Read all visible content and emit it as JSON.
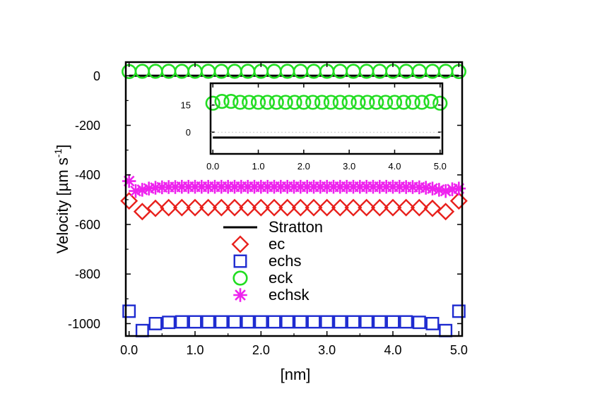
{
  "chart_data": {
    "type": "scatter",
    "xlabel": "[nm]",
    "ylabel": "Velocity [µm s",
    "ylabel_sup": "-1",
    "ylabel_close": "]",
    "xlim": [
      -0.05,
      5.05
    ],
    "ylim": [
      -1050,
      55
    ],
    "xticks": [
      0.0,
      1.0,
      2.0,
      3.0,
      4.0,
      5.0
    ],
    "xtick_labels": [
      "0.0",
      "1.0",
      "2.0",
      "3.0",
      "4.0",
      "5.0"
    ],
    "yticks": [
      0,
      -200,
      -400,
      -600,
      -800,
      -1000
    ],
    "ytick_labels": [
      "0",
      "-200",
      "-400",
      "-600",
      "-800",
      "-1000"
    ],
    "legend_position": "center",
    "series": [
      {
        "name": "Stratton",
        "marker": "line",
        "color": "#000000",
        "x": [
          0.0,
          5.0
        ],
        "y": [
          0,
          0
        ]
      },
      {
        "name": "ec",
        "marker": "diamond",
        "color": "#e8201c",
        "x": [
          0.0,
          0.2,
          0.4,
          0.6,
          0.8,
          1.0,
          1.2,
          1.4,
          1.6,
          1.8,
          2.0,
          2.2,
          2.4,
          2.6,
          2.8,
          3.0,
          3.2,
          3.4,
          3.6,
          3.8,
          4.0,
          4.2,
          4.4,
          4.6,
          4.8,
          5.0
        ],
        "y": [
          -505,
          -548,
          -535,
          -532,
          -532,
          -532,
          -532,
          -532,
          -532,
          -532,
          -532,
          -532,
          -532,
          -532,
          -532,
          -532,
          -532,
          -532,
          -532,
          -532,
          -532,
          -532,
          -532,
          -535,
          -548,
          -505
        ]
      },
      {
        "name": "echs",
        "marker": "square",
        "color": "#1e2bd0",
        "x": [
          0.0,
          0.2,
          0.4,
          0.6,
          0.8,
          1.0,
          1.2,
          1.4,
          1.6,
          1.8,
          2.0,
          2.2,
          2.4,
          2.6,
          2.8,
          3.0,
          3.2,
          3.4,
          3.6,
          3.8,
          4.0,
          4.2,
          4.4,
          4.6,
          4.8,
          5.0
        ],
        "y": [
          -950,
          -1028,
          -1000,
          -995,
          -993,
          -993,
          -993,
          -993,
          -993,
          -993,
          -993,
          -993,
          -993,
          -993,
          -993,
          -993,
          -993,
          -993,
          -993,
          -993,
          -993,
          -993,
          -995,
          -1000,
          -1028,
          -950
        ]
      },
      {
        "name": "eck",
        "marker": "circle",
        "color": "#22dd22",
        "x": [
          0.0,
          0.2,
          0.4,
          0.6,
          0.8,
          1.0,
          1.2,
          1.4,
          1.6,
          1.8,
          2.0,
          2.2,
          2.4,
          2.6,
          2.8,
          3.0,
          3.2,
          3.4,
          3.6,
          3.8,
          4.0,
          4.2,
          4.4,
          4.6,
          4.8,
          5.0
        ],
        "y": [
          17,
          18,
          18,
          18,
          18,
          18,
          18,
          18,
          18,
          18,
          18,
          18,
          18,
          18,
          18,
          18,
          18,
          18,
          18,
          18,
          18,
          18,
          18,
          18,
          18,
          17
        ]
      },
      {
        "name": "echsk",
        "marker": "asterisk",
        "color": "#ee22ee",
        "x": [
          0.0,
          0.1,
          0.2,
          0.3,
          0.4,
          0.5,
          0.6,
          0.7,
          0.8,
          0.9,
          1.0,
          1.1,
          1.2,
          1.3,
          1.4,
          1.5,
          1.6,
          1.7,
          1.8,
          1.9,
          2.0,
          2.1,
          2.2,
          2.3,
          2.4,
          2.5,
          2.6,
          2.7,
          2.8,
          2.9,
          3.0,
          3.1,
          3.2,
          3.3,
          3.4,
          3.5,
          3.6,
          3.7,
          3.8,
          3.9,
          4.0,
          4.1,
          4.2,
          4.3,
          4.4,
          4.5,
          4.6,
          4.7,
          4.8,
          4.9,
          5.0
        ],
        "y": [
          -425,
          -465,
          -460,
          -455,
          -452,
          -450,
          -449,
          -449,
          -448,
          -448,
          -448,
          -448,
          -448,
          -448,
          -448,
          -448,
          -448,
          -448,
          -448,
          -448,
          -448,
          -448,
          -448,
          -448,
          -448,
          -448,
          -448,
          -448,
          -448,
          -448,
          -448,
          -448,
          -448,
          -448,
          -448,
          -448,
          -448,
          -448,
          -448,
          -448,
          -448,
          -448,
          -449,
          -449,
          -450,
          -452,
          -455,
          -460,
          -465,
          -458,
          -455
        ]
      }
    ],
    "inset": {
      "xlim": [
        -0.05,
        5.05
      ],
      "ylim": [
        -12,
        27
      ],
      "xticks": [
        0.0,
        1.0,
        2.0,
        3.0,
        4.0,
        5.0
      ],
      "xtick_labels": [
        "0.0",
        "1.0",
        "2.0",
        "3.0",
        "4.0",
        "5.0"
      ],
      "yticks": [
        15,
        0
      ],
      "ytick_labels": [
        "15",
        "0"
      ],
      "series": [
        {
          "name": "Stratton",
          "marker": "line",
          "color": "#000000",
          "x": [
            0.0,
            5.0
          ],
          "y": [
            -3,
            -3
          ]
        },
        {
          "name": "eck",
          "marker": "circle",
          "color": "#22dd22",
          "x": [
            0.0,
            0.2,
            0.4,
            0.6,
            0.8,
            1.0,
            1.2,
            1.4,
            1.6,
            1.8,
            2.0,
            2.2,
            2.4,
            2.6,
            2.8,
            3.0,
            3.2,
            3.4,
            3.6,
            3.8,
            4.0,
            4.2,
            4.4,
            4.6,
            4.8,
            5.0
          ],
          "y": [
            16,
            17,
            17,
            16.5,
            16.5,
            16.5,
            16.5,
            16.5,
            16.5,
            16.5,
            16.5,
            16.5,
            16.5,
            16.5,
            16.5,
            16.5,
            16.5,
            16.5,
            16.5,
            16.5,
            16.5,
            16.5,
            16.5,
            16.5,
            17,
            16
          ]
        }
      ]
    }
  }
}
